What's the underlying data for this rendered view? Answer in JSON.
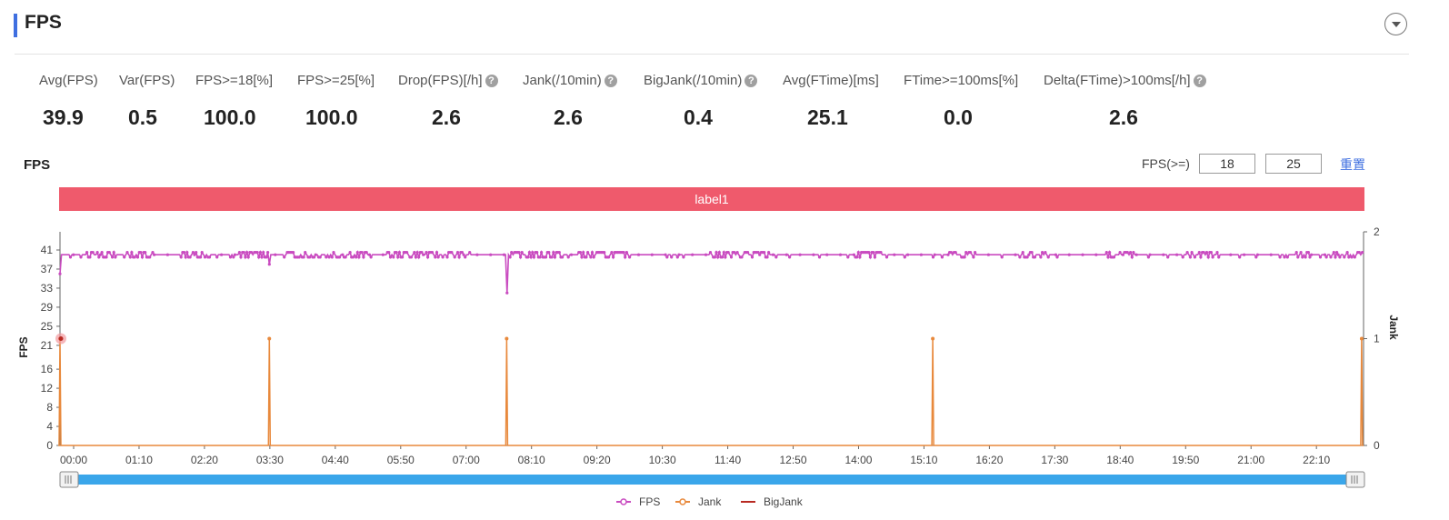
{
  "header": {
    "title": "FPS"
  },
  "metrics": [
    {
      "label": "Avg(FPS)",
      "value": "39.9",
      "help": false
    },
    {
      "label": "Var(FPS)",
      "value": "0.5",
      "help": false
    },
    {
      "label": "FPS>=18[%]",
      "value": "100.0",
      "help": false
    },
    {
      "label": "FPS>=25[%]",
      "value": "100.0",
      "help": false
    },
    {
      "label": "Drop(FPS)[/h]",
      "value": "2.6",
      "help": true
    },
    {
      "label": "Jank(/10min)",
      "value": "2.6",
      "help": true
    },
    {
      "label": "BigJank(/10min)",
      "value": "0.4",
      "help": true
    },
    {
      "label": "Avg(FTime)[ms]",
      "value": "25.1",
      "help": false
    },
    {
      "label": "FTime>=100ms[%]",
      "value": "0.0",
      "help": false
    },
    {
      "label": "Delta(FTime)>100ms[/h]",
      "value": "2.6",
      "help": true
    }
  ],
  "help_glyph": "?",
  "chart_section": {
    "title": "FPS",
    "threshold_label": "FPS(>=)",
    "threshold_low": "18",
    "threshold_high": "25",
    "reset_label": "重置",
    "band_label": "label1"
  },
  "chart_data": {
    "type": "line",
    "x_ticks": [
      "00:00",
      "01:10",
      "02:20",
      "03:30",
      "04:40",
      "05:50",
      "07:00",
      "08:10",
      "09:20",
      "10:30",
      "11:40",
      "12:50",
      "14:00",
      "15:10",
      "16:20",
      "17:30",
      "18:40",
      "19:50",
      "21:00",
      "22:10"
    ],
    "x_range_minutes": [
      0,
      1395
    ],
    "y_left": {
      "label": "FPS",
      "ticks": [
        0,
        4,
        8,
        12,
        16,
        21,
        25,
        29,
        33,
        37,
        41
      ]
    },
    "y_right": {
      "label": "Jank",
      "ticks": [
        0,
        1,
        2
      ],
      "range": [
        0,
        2
      ]
    },
    "series": [
      {
        "name": "FPS",
        "color": "#c94bc0",
        "baseline": 40,
        "dips": [
          {
            "x_min": 0,
            "y": 36
          },
          {
            "x_min": 224,
            "y": 38
          },
          {
            "x_min": 478,
            "y": 32
          },
          {
            "x_min": 1393,
            "y": 34
          }
        ],
        "dense_ranges_min": [
          [
            28,
            60
          ],
          [
            70,
            100
          ],
          [
            128,
            160
          ],
          [
            190,
            225
          ],
          [
            240,
            300
          ],
          [
            300,
            330
          ],
          [
            350,
            440
          ],
          [
            478,
            540
          ],
          [
            555,
            610
          ],
          [
            695,
            760
          ],
          [
            850,
            880
          ],
          [
            950,
            980
          ],
          [
            1030,
            1060
          ],
          [
            1120,
            1150
          ],
          [
            1200,
            1240
          ],
          [
            1310,
            1340
          ],
          [
            1360,
            1395
          ]
        ]
      },
      {
        "name": "Jank",
        "color": "#e8893c",
        "values": [
          {
            "x_min": 0,
            "y": 1
          },
          {
            "x_min": 224,
            "y": 1
          },
          {
            "x_min": 478,
            "y": 1
          },
          {
            "x_min": 934,
            "y": 1
          },
          {
            "x_min": 1393,
            "y": 1
          }
        ]
      },
      {
        "name": "BigJank",
        "color": "#b82a22",
        "values": [
          {
            "x_min": 0,
            "y": 1
          }
        ]
      }
    ],
    "legend": [
      "FPS",
      "Jank",
      "BigJank"
    ],
    "legend_position": "bottom-center",
    "grid": false
  }
}
